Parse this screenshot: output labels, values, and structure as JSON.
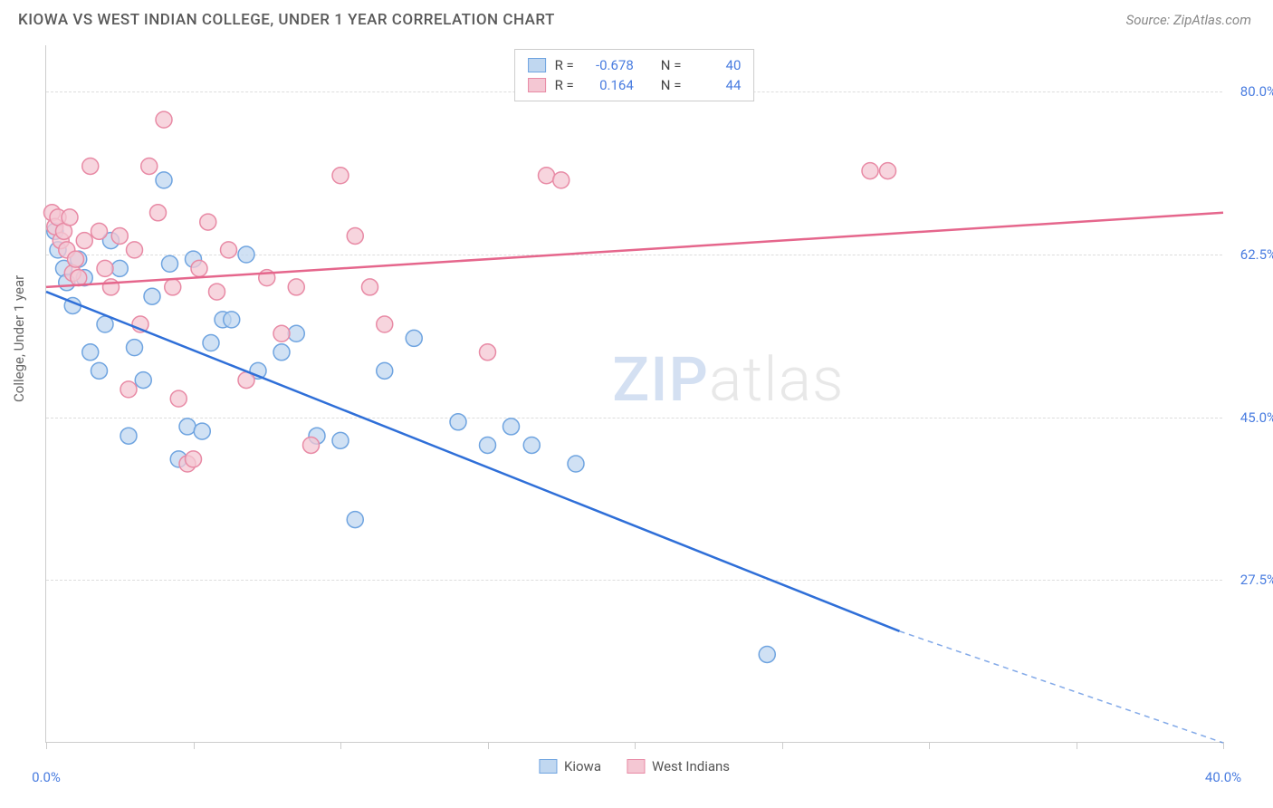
{
  "title": "KIOWA VS WEST INDIAN COLLEGE, UNDER 1 YEAR CORRELATION CHART",
  "source": "Source: ZipAtlas.com",
  "ylabel": "College, Under 1 year",
  "watermark_zip": "ZIP",
  "watermark_atlas": "atlas",
  "chart": {
    "type": "scatter",
    "xlim": [
      0,
      40
    ],
    "ylim": [
      10,
      85
    ],
    "xticks": [
      0,
      5,
      10,
      15,
      20,
      25,
      30,
      35,
      40
    ],
    "xtick_labels": {
      "0": "0.0%",
      "40": "40.0%"
    },
    "yticks": [
      27.5,
      45.0,
      62.5,
      80.0
    ],
    "ytick_labels": [
      "27.5%",
      "45.0%",
      "62.5%",
      "80.0%"
    ],
    "grid_color": "#dddddd",
    "background_color": "#ffffff",
    "series": [
      {
        "name": "Kiowa",
        "key": "kiowa",
        "color_fill": "#c0d7f0",
        "color_stroke": "#6fa4e0",
        "marker_radius": 9,
        "line_color": "#2f6fd8",
        "R": "-0.678",
        "N": "40",
        "trend": {
          "x1": 0,
          "y1": 58.5,
          "x2": 29,
          "y2": 22,
          "x2_dash": 40,
          "y2_dash": 10
        },
        "points": [
          [
            0.3,
            65
          ],
          [
            0.4,
            63
          ],
          [
            0.6,
            61
          ],
          [
            0.7,
            59.5
          ],
          [
            0.9,
            57
          ],
          [
            1.1,
            62
          ],
          [
            1.3,
            60
          ],
          [
            1.5,
            52
          ],
          [
            1.8,
            50
          ],
          [
            2.0,
            55
          ],
          [
            2.2,
            64
          ],
          [
            2.5,
            61
          ],
          [
            2.8,
            43
          ],
          [
            3.0,
            52.5
          ],
          [
            3.3,
            49
          ],
          [
            3.6,
            58
          ],
          [
            4.0,
            70.5
          ],
          [
            4.2,
            61.5
          ],
          [
            4.5,
            40.5
          ],
          [
            4.8,
            44
          ],
          [
            5.0,
            62
          ],
          [
            5.3,
            43.5
          ],
          [
            5.6,
            53
          ],
          [
            6.0,
            55.5
          ],
          [
            6.3,
            55.5
          ],
          [
            6.8,
            62.5
          ],
          [
            7.2,
            50
          ],
          [
            8.0,
            52
          ],
          [
            8.5,
            54
          ],
          [
            9.2,
            43
          ],
          [
            10.0,
            42.5
          ],
          [
            10.5,
            34
          ],
          [
            11.5,
            50
          ],
          [
            12.5,
            53.5
          ],
          [
            14.0,
            44.5
          ],
          [
            15.0,
            42
          ],
          [
            15.8,
            44
          ],
          [
            16.5,
            42
          ],
          [
            18.0,
            40
          ],
          [
            24.5,
            19.5
          ]
        ]
      },
      {
        "name": "West Indians",
        "key": "westindians",
        "color_fill": "#f4c7d3",
        "color_stroke": "#e88aa5",
        "marker_radius": 9,
        "line_color": "#e5668c",
        "R": "0.164",
        "N": "44",
        "trend": {
          "x1": 0,
          "y1": 59,
          "x2": 40,
          "y2": 67
        },
        "points": [
          [
            0.2,
            67
          ],
          [
            0.3,
            65.5
          ],
          [
            0.4,
            66.5
          ],
          [
            0.5,
            64
          ],
          [
            0.6,
            65
          ],
          [
            0.7,
            63
          ],
          [
            0.8,
            66.5
          ],
          [
            0.9,
            60.5
          ],
          [
            1.0,
            62
          ],
          [
            1.1,
            60
          ],
          [
            1.3,
            64
          ],
          [
            1.5,
            72
          ],
          [
            1.8,
            65
          ],
          [
            2.0,
            61
          ],
          [
            2.2,
            59
          ],
          [
            2.5,
            64.5
          ],
          [
            2.8,
            48
          ],
          [
            3.0,
            63
          ],
          [
            3.2,
            55
          ],
          [
            3.5,
            72
          ],
          [
            3.8,
            67
          ],
          [
            4.0,
            77
          ],
          [
            4.3,
            59
          ],
          [
            4.5,
            47
          ],
          [
            4.8,
            40
          ],
          [
            5.0,
            40.5
          ],
          [
            5.2,
            61
          ],
          [
            5.5,
            66
          ],
          [
            5.8,
            58.5
          ],
          [
            6.2,
            63
          ],
          [
            6.8,
            49
          ],
          [
            7.5,
            60
          ],
          [
            8.0,
            54
          ],
          [
            8.5,
            59
          ],
          [
            9.0,
            42
          ],
          [
            10.0,
            71
          ],
          [
            10.5,
            64.5
          ],
          [
            11.5,
            55
          ],
          [
            15.0,
            52
          ],
          [
            17.0,
            71
          ],
          [
            17.5,
            70.5
          ],
          [
            28.0,
            71.5
          ],
          [
            28.6,
            71.5
          ],
          [
            11.0,
            59
          ]
        ]
      }
    ]
  },
  "legend_top": {
    "rows": [
      {
        "swatch_fill": "#c0d7f0",
        "swatch_stroke": "#6fa4e0",
        "r_label": "R =",
        "r_val": "-0.678",
        "n_label": "N =",
        "n_val": "40"
      },
      {
        "swatch_fill": "#f4c7d3",
        "swatch_stroke": "#e88aa5",
        "r_label": "R =",
        "r_val": "0.164",
        "n_label": "N =",
        "n_val": "44"
      }
    ]
  },
  "legend_bottom": {
    "items": [
      {
        "swatch_fill": "#c0d7f0",
        "swatch_stroke": "#6fa4e0",
        "label": "Kiowa"
      },
      {
        "swatch_fill": "#f4c7d3",
        "swatch_stroke": "#e88aa5",
        "label": "West Indians"
      }
    ]
  }
}
